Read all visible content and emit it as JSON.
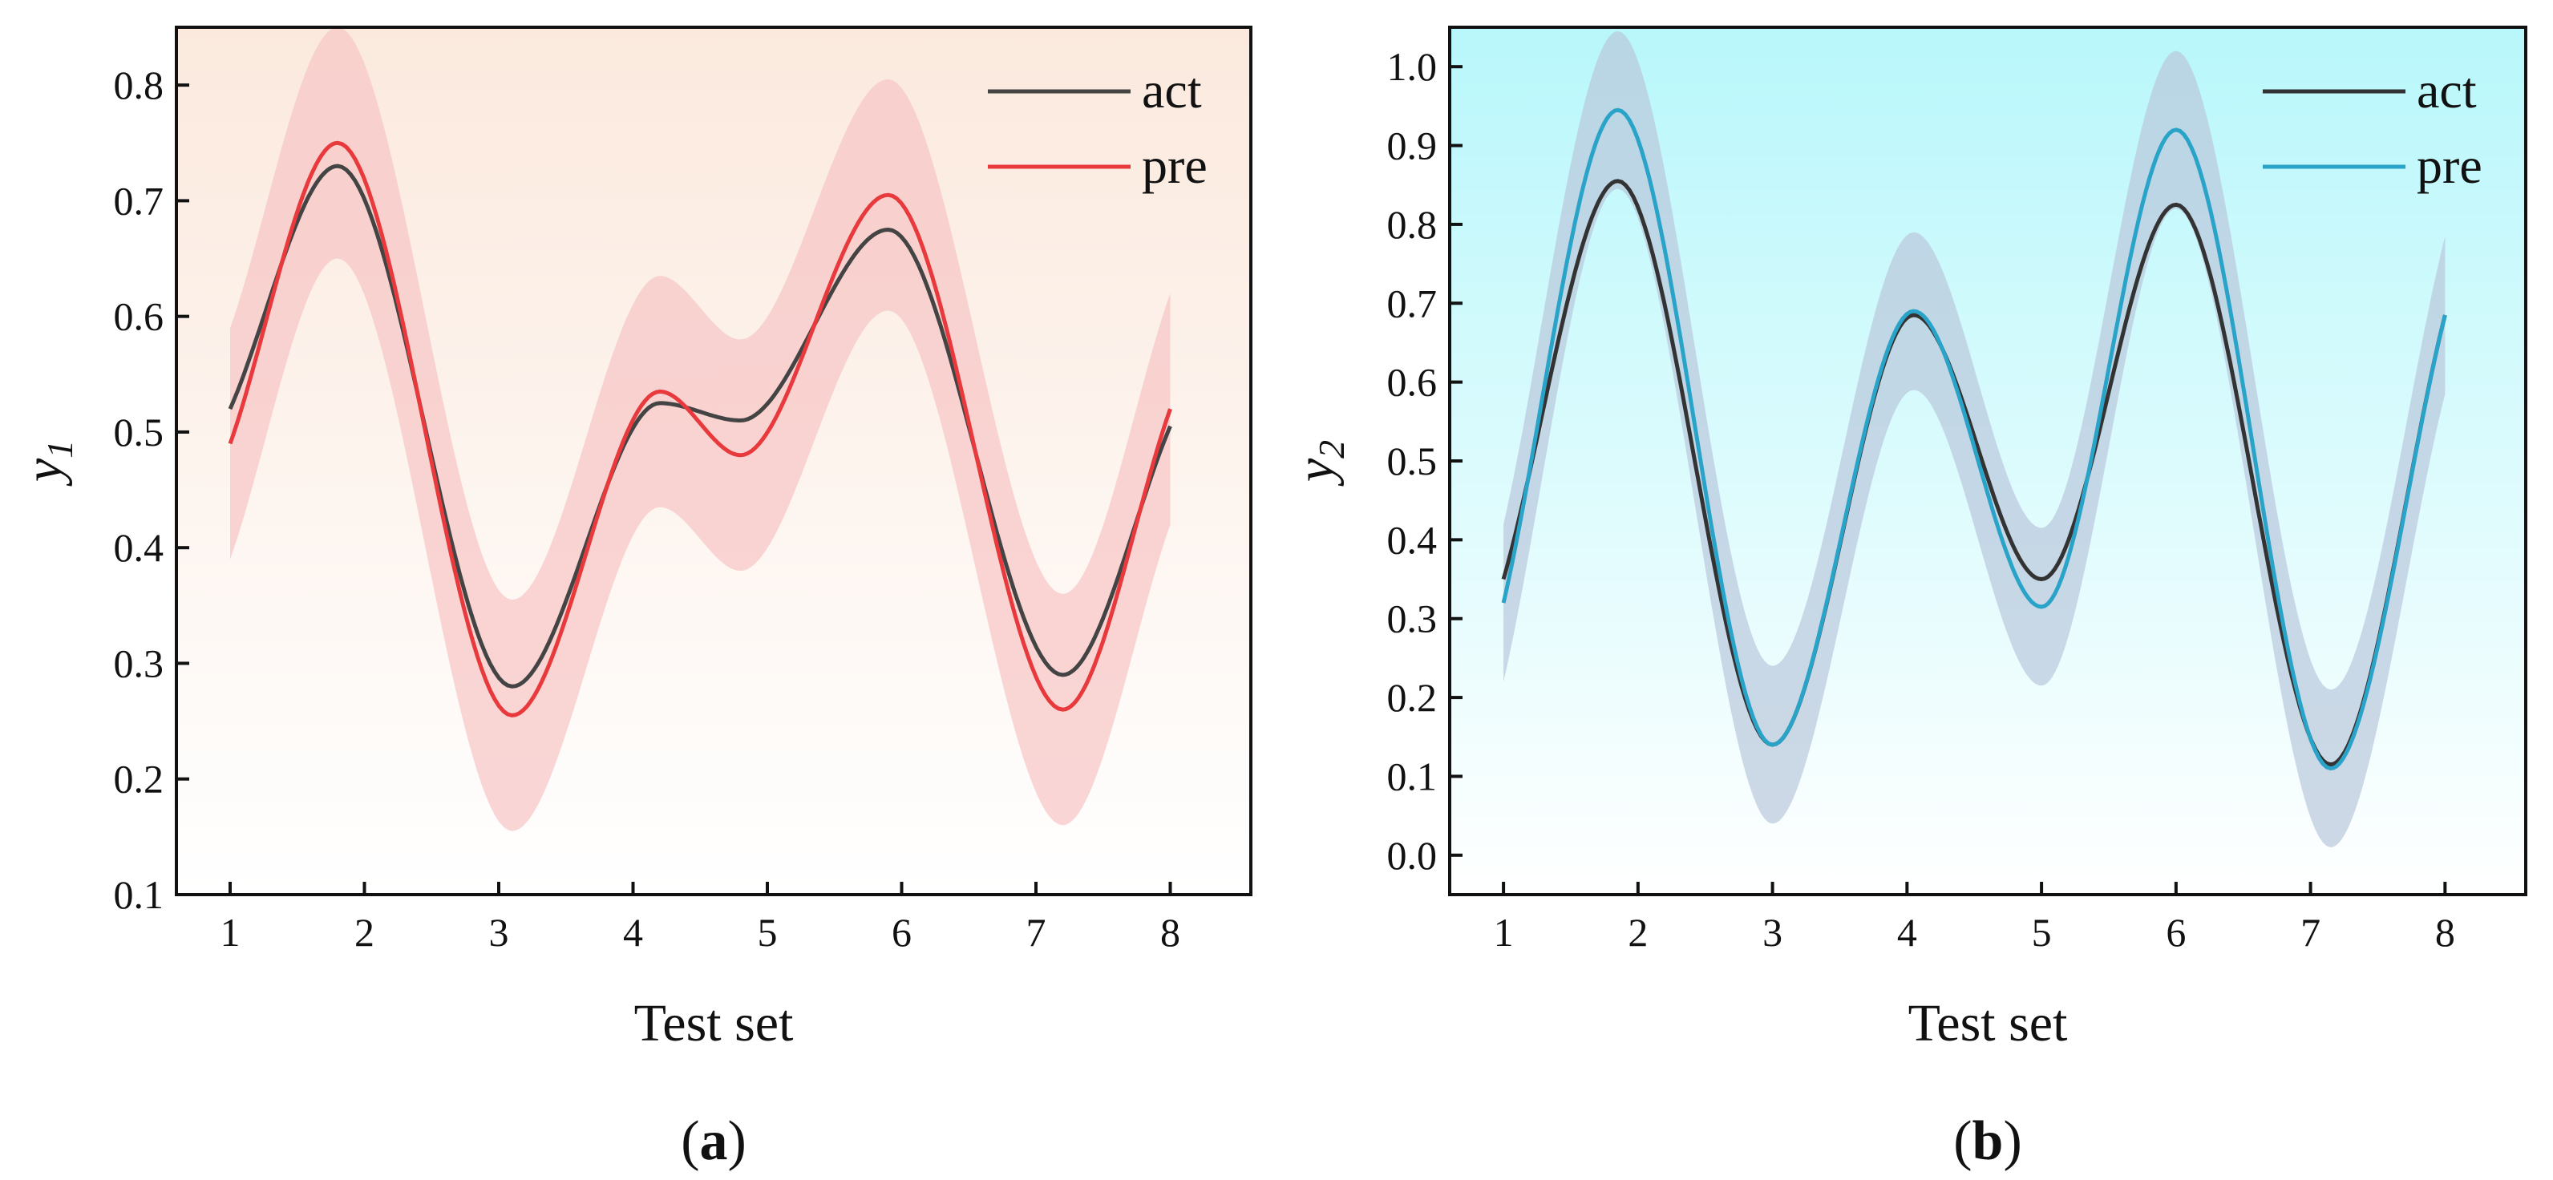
{
  "chart_data": [
    {
      "type": "line",
      "panel_label": "a",
      "xlabel": "Test set",
      "ylabel": "y",
      "ylabel_sub": "1",
      "xlim": [
        0.6,
        8.6
      ],
      "ylim": [
        0.1,
        0.85
      ],
      "xticks": [
        1,
        2,
        3,
        4,
        5,
        6,
        7,
        8
      ],
      "yticks": [
        0.1,
        0.2,
        0.3,
        0.4,
        0.5,
        0.6,
        0.7,
        0.8
      ],
      "ytick_labels": [
        "0.1",
        "0.2",
        "0.3",
        "0.4",
        "0.5",
        "0.6",
        "0.7",
        "0.8"
      ],
      "background_gradient": [
        "#fbe9dd",
        "#ffffff"
      ],
      "band_color": "#f7c4c4",
      "band_halfwidth": 0.1,
      "band_of": "pre",
      "legend_position": "top-right",
      "x": [
        1,
        1.8,
        3.1,
        4.2,
        4.8,
        5.9,
        7.2,
        8
      ],
      "series": [
        {
          "name": "act",
          "color": "#444444",
          "values": [
            0.52,
            0.73,
            0.28,
            0.525,
            0.51,
            0.675,
            0.29,
            0.505
          ]
        },
        {
          "name": "pre",
          "color": "#e8393d",
          "values": [
            0.49,
            0.75,
            0.255,
            0.535,
            0.48,
            0.705,
            0.26,
            0.52
          ]
        }
      ]
    },
    {
      "type": "line",
      "panel_label": "b",
      "xlabel": "Test set",
      "ylabel": "y",
      "ylabel_sub": "2",
      "xlim": [
        0.6,
        8.6
      ],
      "ylim": [
        -0.05,
        1.05
      ],
      "xticks": [
        1,
        2,
        3,
        4,
        5,
        6,
        7,
        8
      ],
      "yticks": [
        0.0,
        0.1,
        0.2,
        0.3,
        0.4,
        0.5,
        0.6,
        0.7,
        0.8,
        0.9,
        1.0
      ],
      "ytick_labels": [
        "0.0",
        "0.1",
        "0.2",
        "0.3",
        "0.4",
        "0.5",
        "0.6",
        "0.7",
        "0.8",
        "0.9",
        "1.0"
      ],
      "background_gradient": [
        "#b8f7fb",
        "#ffffff"
      ],
      "band_color": "#b9c8dc",
      "band_halfwidth": 0.1,
      "band_of": "pre",
      "legend_position": "top-right",
      "x": [
        1,
        1.85,
        3.0,
        4.05,
        5.0,
        6.0,
        7.15,
        8
      ],
      "series": [
        {
          "name": "act",
          "color": "#333333",
          "values": [
            0.35,
            0.855,
            0.14,
            0.685,
            0.35,
            0.825,
            0.115,
            0.685
          ]
        },
        {
          "name": "pre",
          "color": "#2aa3c8",
          "values": [
            0.32,
            0.945,
            0.14,
            0.69,
            0.315,
            0.92,
            0.11,
            0.685
          ]
        }
      ]
    }
  ]
}
